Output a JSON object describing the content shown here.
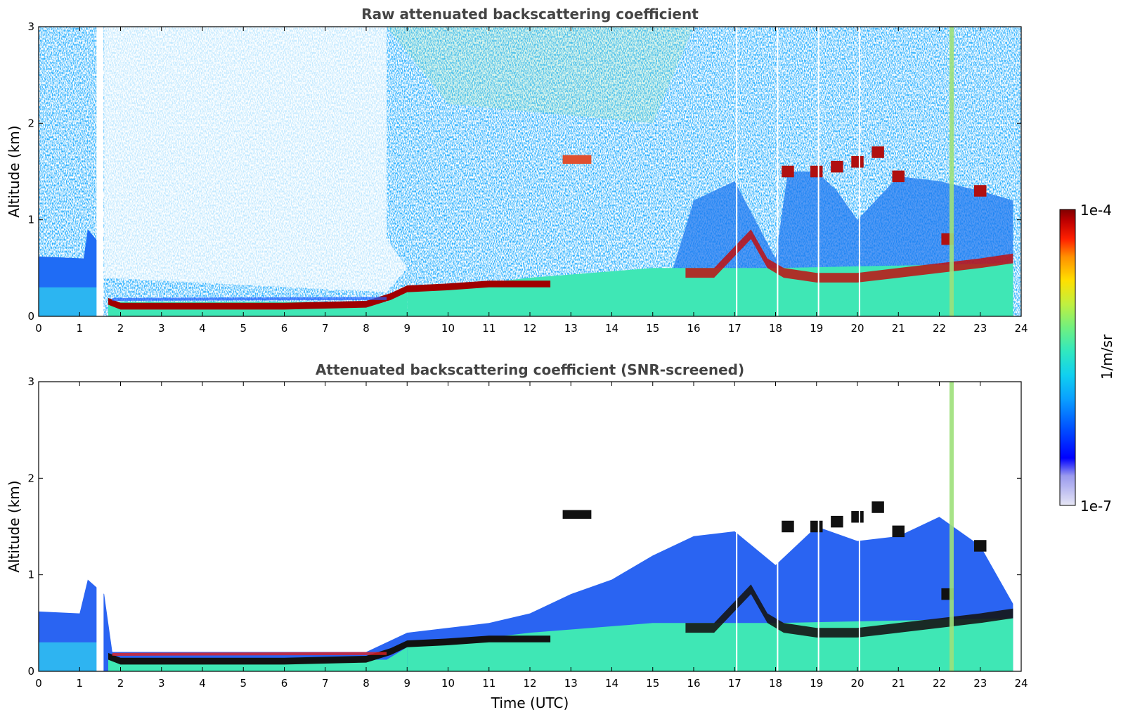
{
  "chart_data": [
    {
      "type": "heatmap",
      "title": "Raw attenuated backscattering coefficient",
      "xlabel": "",
      "ylabel": "Altitude (km)",
      "xlim": [
        0,
        24
      ],
      "ylim": [
        0,
        3
      ],
      "x_ticks": [
        "0",
        "1",
        "2",
        "3",
        "4",
        "5",
        "6",
        "7",
        "8",
        "9",
        "10",
        "11",
        "12",
        "13",
        "14",
        "15",
        "16",
        "17",
        "18",
        "19",
        "20",
        "21",
        "22",
        "23",
        "24"
      ],
      "y_ticks": [
        "0",
        "1",
        "2",
        "3"
      ],
      "layers": [
        {
          "name": "boundary-layer-aerosol",
          "points": [
            [
              1.7,
              0.15
            ],
            [
              2,
              0.1
            ],
            [
              4,
              0.1
            ],
            [
              6,
              0.1
            ],
            [
              8,
              0.12
            ],
            [
              8.6,
              0.2
            ],
            [
              9,
              0.28
            ],
            [
              10,
              0.3
            ],
            [
              11,
              0.33
            ],
            [
              12,
              0.33
            ],
            [
              12.5,
              0.33
            ]
          ]
        },
        {
          "name": "residual-layer-aerosol",
          "points": [
            [
              15.8,
              0.45
            ],
            [
              16.5,
              0.45
            ],
            [
              17.4,
              0.85
            ],
            [
              17.8,
              0.55
            ],
            [
              18.2,
              0.45
            ],
            [
              19,
              0.4
            ],
            [
              20,
              0.4
            ],
            [
              21,
              0.45
            ],
            [
              22,
              0.5
            ],
            [
              23,
              0.55
            ],
            [
              23.8,
              0.6
            ]
          ]
        },
        {
          "name": "elevated-layer",
          "points": [
            [
              12.8,
              1.62
            ],
            [
              13.5,
              1.62
            ]
          ]
        },
        {
          "name": "upper-cloud-fragments",
          "points": [
            [
              18.3,
              1.5
            ],
            [
              19,
              1.5
            ],
            [
              19.5,
              1.55
            ],
            [
              20,
              1.6
            ],
            [
              20.5,
              1.7
            ],
            [
              21,
              1.45
            ],
            [
              22.2,
              0.8
            ],
            [
              23,
              1.3
            ]
          ]
        }
      ],
      "data_gaps_utc": [
        1.5,
        17.05,
        18.05,
        19.05,
        20.05
      ]
    },
    {
      "type": "heatmap",
      "title": "Attenuated backscattering coefficient (SNR-screened)",
      "xlabel": "Time (UTC)",
      "ylabel": "Altitude (km)",
      "xlim": [
        0,
        24
      ],
      "ylim": [
        0,
        3
      ],
      "x_ticks": [
        "0",
        "1",
        "2",
        "3",
        "4",
        "5",
        "6",
        "7",
        "8",
        "9",
        "10",
        "11",
        "12",
        "13",
        "14",
        "15",
        "16",
        "17",
        "18",
        "19",
        "20",
        "21",
        "22",
        "23",
        "24"
      ],
      "y_ticks": [
        "0",
        "1",
        "2",
        "3"
      ],
      "signal_top_km": [
        [
          0,
          0.62
        ],
        [
          1,
          0.6
        ],
        [
          1.2,
          0.95
        ],
        [
          1.6,
          0.8
        ],
        [
          1.8,
          0.2
        ],
        [
          3,
          0.2
        ],
        [
          5,
          0.2
        ],
        [
          8,
          0.2
        ],
        [
          9,
          0.4
        ],
        [
          11,
          0.5
        ],
        [
          12,
          0.6
        ],
        [
          13,
          0.8
        ],
        [
          14,
          0.95
        ],
        [
          15,
          1.2
        ],
        [
          16,
          1.4
        ],
        [
          17,
          1.45
        ],
        [
          18,
          1.1
        ],
        [
          19,
          1.5
        ],
        [
          20,
          1.35
        ],
        [
          21,
          1.4
        ],
        [
          22,
          1.6
        ],
        [
          23,
          1.3
        ],
        [
          23.8,
          0.7
        ]
      ]
    }
  ],
  "colorbar": {
    "label": "1/m/sr",
    "max_label": "1e-4",
    "min_label": "1e-7",
    "scale": "log",
    "colormap": [
      "#e6e6f5",
      "#9a9aee",
      "#0000ff",
      "#0050ff",
      "#0aa0ff",
      "#10d0f0",
      "#30e8c0",
      "#70f080",
      "#c0f040",
      "#ffe000",
      "#ff9000",
      "#ff2000",
      "#c00000",
      "#800000"
    ]
  }
}
